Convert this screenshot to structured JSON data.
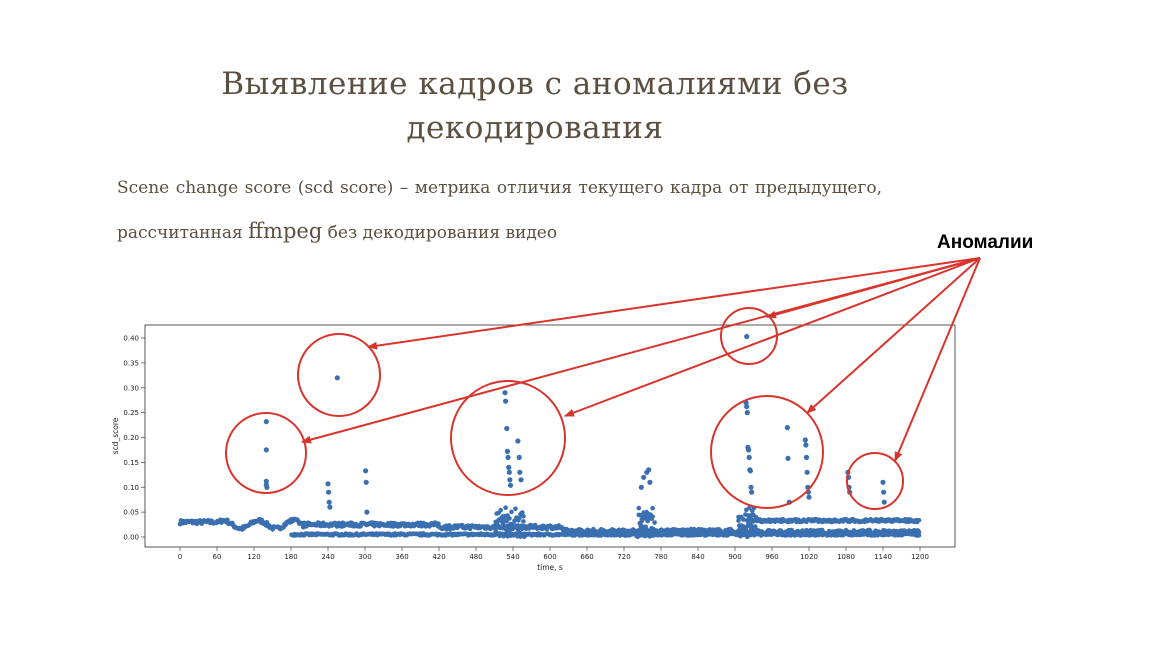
{
  "slide": {
    "title": "Выявление кадров с аномалиями без декодирования",
    "description_part1": "Scene change score (scd score) – метрика отличия текущего кадра от предыдущего, рассчитанная",
    "description_term": "ffmpeg",
    "description_part2": "без декодирования видео",
    "callout_label": "Аномалии"
  },
  "colors": {
    "text": "#5b4f3f",
    "points": "#3a6fb0",
    "annotation": "#d9342b"
  },
  "chart_data": {
    "type": "scatter",
    "xlabel": "time, s",
    "ylabel": "scd_score",
    "xlim": [
      0,
      1200
    ],
    "ylim": [
      0.0,
      0.4
    ],
    "xticks": [
      0,
      60,
      120,
      180,
      240,
      300,
      360,
      420,
      480,
      540,
      600,
      660,
      720,
      780,
      840,
      900,
      960,
      1020,
      1080,
      1140,
      1200
    ],
    "yticks": [
      0.0,
      0.05,
      0.1,
      0.15,
      0.2,
      0.25,
      0.3,
      0.35,
      0.4
    ],
    "series": [
      {
        "name": "scd_score",
        "points": [
          [
            140,
            0.232
          ],
          [
            140,
            0.175
          ],
          [
            140,
            0.112
          ],
          [
            140,
            0.105
          ],
          [
            141,
            0.1
          ],
          [
            240,
            0.107
          ],
          [
            241,
            0.09
          ],
          [
            242,
            0.07
          ],
          [
            243,
            0.06
          ],
          [
            255,
            0.32
          ],
          [
            301,
            0.133
          ],
          [
            302,
            0.11
          ],
          [
            303,
            0.05
          ],
          [
            527,
            0.29
          ],
          [
            528,
            0.273
          ],
          [
            530,
            0.218
          ],
          [
            531,
            0.172
          ],
          [
            532,
            0.16
          ],
          [
            533,
            0.14
          ],
          [
            534,
            0.13
          ],
          [
            535,
            0.115
          ],
          [
            536,
            0.104
          ],
          [
            548,
            0.193
          ],
          [
            550,
            0.16
          ],
          [
            551,
            0.13
          ],
          [
            553,
            0.115
          ],
          [
            748,
            0.1
          ],
          [
            752,
            0.12
          ],
          [
            757,
            0.13
          ],
          [
            760,
            0.135
          ],
          [
            762,
            0.11
          ],
          [
            919,
            0.403
          ],
          [
            918,
            0.27
          ],
          [
            919,
            0.262
          ],
          [
            920,
            0.25
          ],
          [
            921,
            0.18
          ],
          [
            922,
            0.175
          ],
          [
            923,
            0.16
          ],
          [
            924,
            0.135
          ],
          [
            925,
            0.133
          ],
          [
            926,
            0.1
          ],
          [
            927,
            0.09
          ],
          [
            985,
            0.22
          ],
          [
            986,
            0.158
          ],
          [
            988,
            0.07
          ],
          [
            1014,
            0.195
          ],
          [
            1015,
            0.185
          ],
          [
            1016,
            0.16
          ],
          [
            1017,
            0.13
          ],
          [
            1018,
            0.1
          ],
          [
            1019,
            0.09
          ],
          [
            1020,
            0.08
          ],
          [
            1083,
            0.13
          ],
          [
            1084,
            0.12
          ],
          [
            1085,
            0.1
          ],
          [
            1086,
            0.09
          ],
          [
            1140,
            0.11
          ],
          [
            1141,
            0.09
          ],
          [
            1142,
            0.07
          ]
        ]
      }
    ],
    "annotations": [
      {
        "label": "Аномалии",
        "target_x": 140,
        "target_y": 0.175
      },
      {
        "label": "Аномалии",
        "target_x": 258,
        "target_y": 0.325
      },
      {
        "label": "Аномалии",
        "target_x": 540,
        "target_y": 0.2
      },
      {
        "label": "Аномалии",
        "target_x": 920,
        "target_y": 0.405
      },
      {
        "label": "Аномалии",
        "target_x": 948,
        "target_y": 0.17
      },
      {
        "label": "Аномалии",
        "target_x": 1127,
        "target_y": 0.115
      }
    ]
  }
}
